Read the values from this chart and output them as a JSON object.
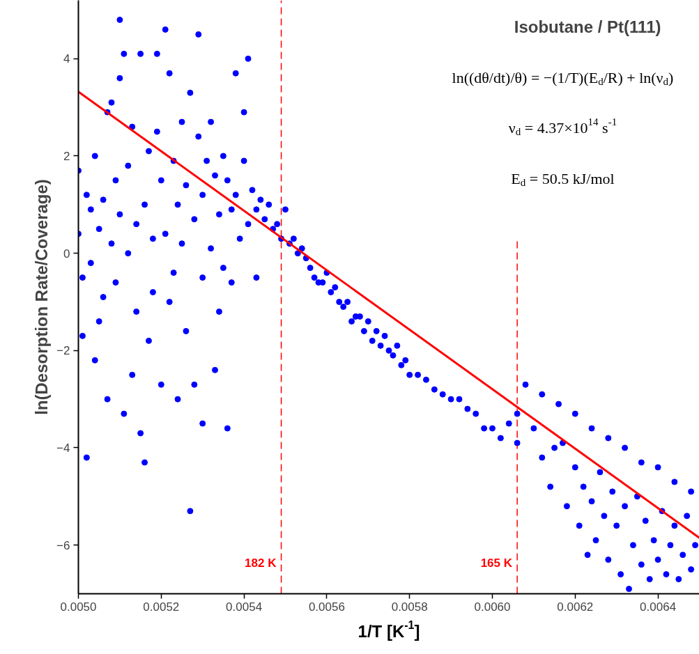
{
  "chart_data": {
    "type": "scatter",
    "title": "Isobutane / Pt(111)",
    "xlabel": "1/T [K$^{-1}$]",
    "ylabel": "ln(Desorption Rate/Coverage)",
    "xlim": [
      0.005,
      0.0065
    ],
    "ylim": [
      -7,
      5.2
    ],
    "xticks": [
      {
        "value": 0.005,
        "label": "0.0050"
      },
      {
        "value": 0.0052,
        "label": "0.0052"
      },
      {
        "value": 0.0054,
        "label": "0.0054"
      },
      {
        "value": 0.0056,
        "label": "0.0056"
      },
      {
        "value": 0.0058,
        "label": "0.0058"
      },
      {
        "value": 0.006,
        "label": "0.0060"
      },
      {
        "value": 0.0062,
        "label": "0.0062"
      },
      {
        "value": 0.0064,
        "label": "0.0064"
      }
    ],
    "yticks": [
      -6,
      -4,
      -2,
      0,
      2,
      4
    ],
    "grid": false,
    "series": [
      {
        "color": "#0000ff",
        "marker": "circle",
        "x": [
          0.005,
          0.005,
          0.00501,
          0.00501,
          0.00502,
          0.00502,
          0.00503,
          0.00503,
          0.00504,
          0.00504,
          0.00505,
          0.00505,
          0.00506,
          0.00506,
          0.00507,
          0.00507,
          0.00508,
          0.00508,
          0.00509,
          0.00509,
          0.0051,
          0.0051,
          0.0051,
          0.00511,
          0.00511,
          0.00512,
          0.00512,
          0.00513,
          0.00513,
          0.00514,
          0.00514,
          0.00515,
          0.00515,
          0.00516,
          0.00516,
          0.00517,
          0.00517,
          0.00518,
          0.00518,
          0.00519,
          0.00519,
          0.0052,
          0.0052,
          0.00521,
          0.00521,
          0.00522,
          0.00522,
          0.00523,
          0.00523,
          0.00524,
          0.00524,
          0.00525,
          0.00525,
          0.00526,
          0.00526,
          0.00527,
          0.00527,
          0.00528,
          0.00528,
          0.00529,
          0.00529,
          0.0053,
          0.0053,
          0.0053,
          0.00531,
          0.00532,
          0.00532,
          0.00533,
          0.00533,
          0.00534,
          0.00534,
          0.00535,
          0.00535,
          0.00536,
          0.00536,
          0.00537,
          0.00537,
          0.00538,
          0.00538,
          0.00539,
          0.0054,
          0.0054,
          0.00541,
          0.00541,
          0.00542,
          0.00543,
          0.00543,
          0.00544,
          0.00545,
          0.00546,
          0.00547,
          0.00548,
          0.00549,
          0.0055,
          0.00551,
          0.00552,
          0.00553,
          0.00554,
          0.00555,
          0.00556,
          0.00557,
          0.00558,
          0.00559,
          0.0056,
          0.00561,
          0.00562,
          0.00563,
          0.00564,
          0.00565,
          0.00566,
          0.00567,
          0.00568,
          0.00569,
          0.0057,
          0.00571,
          0.00572,
          0.00573,
          0.00574,
          0.00575,
          0.00576,
          0.00577,
          0.00578,
          0.00579,
          0.0058,
          0.00582,
          0.00584,
          0.00586,
          0.00588,
          0.0059,
          0.00592,
          0.00594,
          0.00596,
          0.00598,
          0.006,
          0.00602,
          0.00604,
          0.00606,
          0.00606,
          0.00608,
          0.00612,
          0.00616,
          0.0062,
          0.00624,
          0.00628,
          0.00632,
          0.00636,
          0.0064,
          0.00644,
          0.00648,
          0.0061,
          0.00612,
          0.00614,
          0.00615,
          0.00617,
          0.00618,
          0.0062,
          0.00621,
          0.00622,
          0.00623,
          0.00624,
          0.00625,
          0.00626,
          0.00627,
          0.00628,
          0.00629,
          0.0063,
          0.00631,
          0.00632,
          0.00633,
          0.00634,
          0.00635,
          0.00636,
          0.00637,
          0.00638,
          0.00639,
          0.0064,
          0.00641,
          0.00642,
          0.00643,
          0.00644,
          0.00645,
          0.00646,
          0.00647,
          0.00648,
          0.00649
        ],
        "values": [
          1.7,
          0.4,
          -0.5,
          -1.7,
          -4.2,
          1.2,
          0.9,
          -0.2,
          2.0,
          -2.2,
          -1.4,
          0.5,
          1.1,
          -0.9,
          2.9,
          -3.0,
          3.1,
          0.2,
          1.5,
          -0.6,
          3.6,
          4.8,
          0.8,
          4.1,
          -3.3,
          1.8,
          0.0,
          2.6,
          -2.5,
          0.6,
          -1.2,
          4.1,
          -3.7,
          1.0,
          -4.3,
          2.1,
          -1.8,
          0.3,
          -0.8,
          4.1,
          2.5,
          1.5,
          -2.7,
          4.6,
          0.4,
          3.7,
          -1.0,
          1.9,
          -0.4,
          1.0,
          -3.0,
          2.7,
          0.2,
          1.4,
          -1.6,
          3.3,
          -5.3,
          0.7,
          -2.7,
          4.5,
          2.4,
          -0.5,
          1.2,
          -3.5,
          1.9,
          2.7,
          0.1,
          -2.4,
          1.6,
          0.8,
          -1.2,
          2.0,
          -0.3,
          1.5,
          -3.6,
          0.9,
          -0.6,
          3.7,
          1.2,
          0.3,
          2.9,
          1.9,
          4.0,
          0.6,
          1.3,
          -0.5,
          0.9,
          1.1,
          0.7,
          1.0,
          0.5,
          0.6,
          0.3,
          0.9,
          0.2,
          0.3,
          0.0,
          0.1,
          -0.1,
          -0.3,
          -0.5,
          -0.6,
          -0.6,
          -0.4,
          -0.8,
          -0.7,
          -1.0,
          -1.1,
          -1.0,
          -1.4,
          -1.3,
          -1.3,
          -1.6,
          -1.4,
          -1.8,
          -1.6,
          -1.9,
          -1.7,
          -2.0,
          -2.1,
          -1.9,
          -2.3,
          -2.2,
          -2.5,
          -2.5,
          -2.6,
          -2.8,
          -2.9,
          -3.0,
          -3.0,
          -3.2,
          -3.3,
          -3.6,
          -3.6,
          -3.8,
          -3.5,
          -3.3,
          -3.9,
          -2.7,
          -2.9,
          -3.1,
          -3.3,
          -3.6,
          -3.8,
          -4.0,
          -4.3,
          -4.4,
          -4.7,
          -4.9,
          -3.6,
          -4.2,
          -4.8,
          -4.0,
          -3.9,
          -5.2,
          -4.4,
          -5.6,
          -4.8,
          -6.2,
          -5.1,
          -5.9,
          -4.5,
          -5.4,
          -6.3,
          -4.9,
          -5.6,
          -6.6,
          -5.2,
          -6.9,
          -6.0,
          -5.0,
          -6.4,
          -5.5,
          -6.7,
          -5.9,
          -6.3,
          -5.3,
          -6.6,
          -6.0,
          -5.6,
          -6.7,
          -6.2,
          -5.4,
          -6.5,
          -6.0
        ]
      },
      {
        "type": "line",
        "color": "#ff0000",
        "x": [
          0.005,
          0.0065
        ],
        "values": [
          3.32,
          -5.85
        ]
      }
    ],
    "ref_lines": [
      {
        "axis": "x",
        "value": 0.00549,
        "label": "182 K",
        "color": "#ff0000",
        "line_style": "dashed"
      },
      {
        "axis": "x",
        "value": 0.00606,
        "label": "165 K",
        "color": "#ff0000",
        "line_style": "dashed"
      }
    ],
    "annotations": [
      "ln((dθ/dt)/θ) = −(1/T)(E$_{d}$/R) + ln(ν$_{d}$)",
      "ν$_{d}$ = 4.37×10$^{14}$ s$^{-1}$",
      "E$_{d}$ = 50.5 kJ/mol"
    ]
  }
}
